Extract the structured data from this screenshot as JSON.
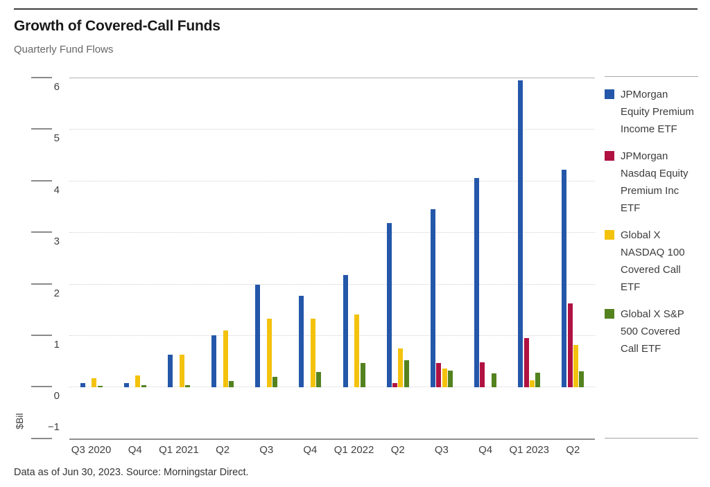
{
  "header": {
    "title": "Growth of Covered-Call Funds",
    "subtitle": "Quarterly Fund Flows"
  },
  "footer": {
    "text": "Data as of Jun 30, 2023. Source: Morningstar Direct."
  },
  "chart_data": {
    "type": "bar",
    "title": "Growth of Covered-Call Funds",
    "subtitle": "Quarterly Fund Flows",
    "xlabel": "",
    "ylabel": "$Bil",
    "ylim": [
      -1,
      6
    ],
    "yticks": [
      6,
      5,
      4,
      3,
      2,
      1,
      0,
      -1
    ],
    "grid": "horizontal dotted, solid rule at top (6) and bottom (-1)",
    "legend_position": "right",
    "categories": [
      "Q3 2020",
      "Q4",
      "Q1 2021",
      "Q2",
      "Q3",
      "Q4",
      "Q1 2022",
      "Q2",
      "Q3",
      "Q4",
      "Q1 2023",
      "Q2"
    ],
    "series": [
      {
        "name": "JPMorgan Equity Premium Income ETF",
        "color": "#2457A9",
        "values": [
          0.07,
          0.07,
          0.63,
          1.0,
          1.98,
          1.77,
          2.17,
          3.18,
          3.45,
          4.06,
          5.95,
          4.22
        ]
      },
      {
        "name": "JPMorgan Nasdaq Equity Premium Inc ETF",
        "color": "#B01241",
        "values": [
          0,
          0,
          0,
          0,
          0,
          0,
          0,
          0.07,
          0.46,
          0.48,
          0.95,
          1.62
        ]
      },
      {
        "name": "Global X NASDAQ 100 Covered Call ETF",
        "color": "#F3C20E",
        "values": [
          0.17,
          0.22,
          0.62,
          1.1,
          1.32,
          1.32,
          1.4,
          0.75,
          0.36,
          0,
          0.13,
          0.81
        ]
      },
      {
        "name": "Global X S&P 500 Covered Call ETF",
        "color": "#53821F",
        "values": [
          0.02,
          0.03,
          0.04,
          0.12,
          0.2,
          0.29,
          0.46,
          0.52,
          0.32,
          0.27,
          0.28,
          0.31
        ]
      }
    ]
  }
}
